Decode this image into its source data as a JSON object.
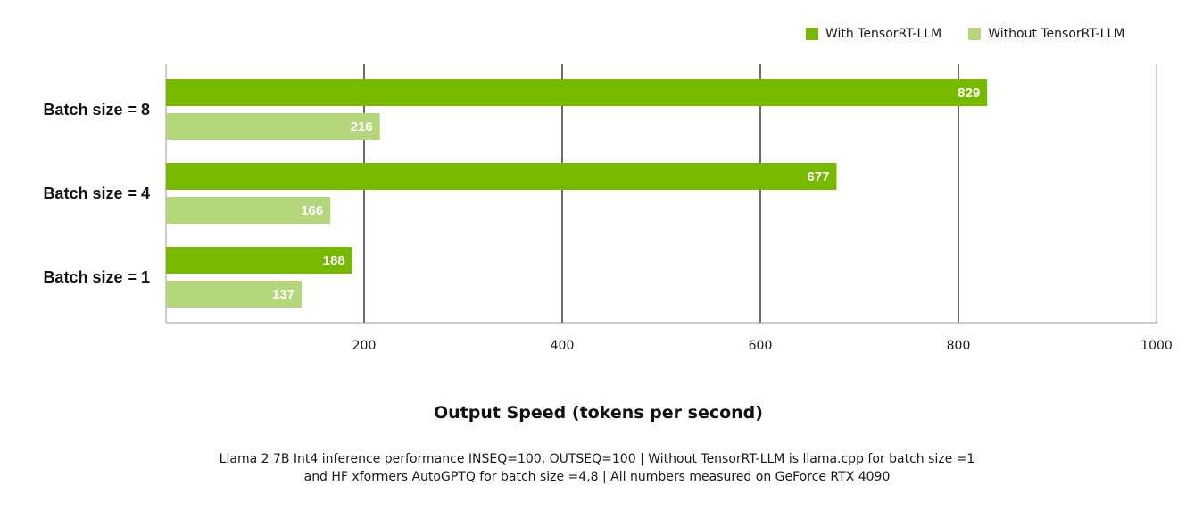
{
  "chart_data": {
    "type": "bar",
    "orientation": "horizontal",
    "categories": [
      "Batch size = 8",
      "Batch size = 4",
      "Batch size = 1"
    ],
    "series": [
      {
        "name": "With TensorRT-LLM",
        "color": "#76b900",
        "values": [
          829,
          677,
          188
        ]
      },
      {
        "name": "Without TensorRT-LLM",
        "color": "#b5d67a",
        "values": [
          216,
          166,
          137
        ]
      }
    ],
    "xlabel": "Output Speed (tokens per second)",
    "xlim": [
      0,
      1000
    ],
    "xticks": [
      200,
      400,
      600,
      800,
      1000
    ],
    "grid": true,
    "legend_position": "top-right",
    "data_labels": true
  },
  "footnote": {
    "line1": "Llama 2 7B Int4 inference performance INSEQ=100, OUTSEQ=100 | Without TensorRT-LLM is llama.cpp for batch size =1",
    "line2": "and HF xformers AutoGPTQ for batch size =4,8 | All numbers measured on GeForce RTX 4090"
  }
}
